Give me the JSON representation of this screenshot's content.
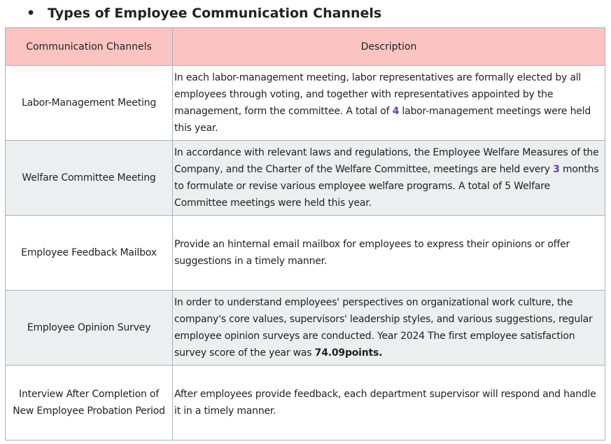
{
  "title": "Types of Employee Communication Channels",
  "table": {
    "header": [
      "Communication Channels",
      "Description"
    ],
    "rows": [
      [
        "Labor-Management Meeting",
        [
          "In each labor-management meeting, labor representatives are formally elected by all employees through voting, and together with representatives appointed by the management, form the committee. A total of ",
          "4",
          " labor-management meetings were held this year."
        ]
      ],
      [
        "Welfare Committee Meeting",
        [
          "In accordance with relevant laws and regulations, the Employee Welfare Measures of the Company, and the Charter of the Welfare Committee, meetings are held every ",
          "3",
          " months to formulate or revise various employee welfare programs. A total of 5 Welfare Committee meetings were held this year."
        ]
      ],
      [
        "Employee Feedback Mailbox",
        [
          "Provide an hinternal email mailbox for employees to express their opinions or offer suggestions in a timely manner."
        ]
      ],
      [
        "Employee Opinion Survey",
        [
          "In order to understand employees' perspectives on organizational work culture, the company's core values, supervisors' leadership styles, and various suggestions, regular employee opinion surveys are conducted. Year 2024 The first employee satisfaction survey score of the year was ",
          "74.09points."
        ]
      ],
      [
        "Interview After Completion of New Employee Probation Period",
        [
          "After employees provide feedback, each department supervisor will respond and handle it in a timely manner."
        ]
      ]
    ]
  }
}
